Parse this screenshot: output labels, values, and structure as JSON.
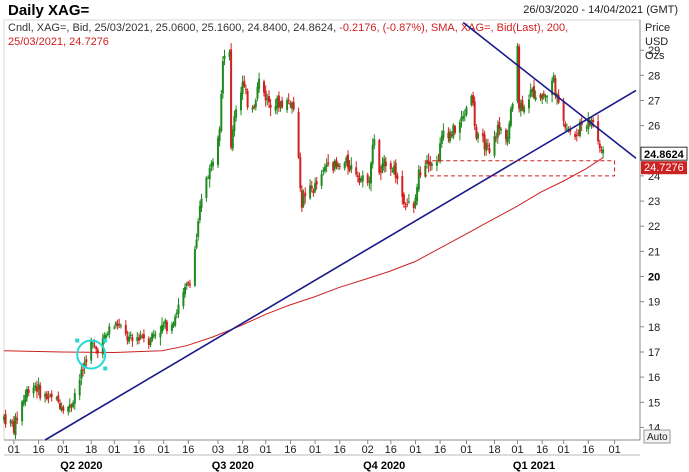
{
  "title": "Daily XAG=",
  "date_range": "26/03/2020 - 14/04/2021 (GMT)",
  "legend_line1_black": "Cndl, XAG=, Bid, 25/03/2021, 25.0600, 25.1600, 24.8400, 24.8624,",
  "legend_line1_change": " -0.2176, (-0.87%),",
  "legend_line1_sma": " SMA, XAG=, Bid(Last),  200,",
  "legend_line2": "25/03/2021, 24.7276",
  "y_axis_units": [
    "Price",
    "USD",
    "Ozs"
  ],
  "auto_label": "Auto",
  "price_box": "24.8624",
  "sma_box": "24.7276",
  "colors": {
    "up": "#1f8a1f",
    "down": "#d21f1f",
    "sma": "#cc2222",
    "trend": "#1a1a8c",
    "circle": "#25d9d9"
  },
  "chart_data": {
    "type": "candlestick",
    "instrument": "XAG=",
    "x_range": [
      "2020-03-26",
      "2021-04-14"
    ],
    "ylim": [
      13.5,
      30.2
    ],
    "y_ticks": [
      14,
      15,
      16,
      17,
      18,
      19,
      20,
      21,
      22,
      23,
      24,
      25,
      26,
      27,
      28,
      29
    ],
    "x_tick_labels": [
      {
        "label": "01",
        "date": "2020-04-01"
      },
      {
        "label": "16",
        "date": "2020-04-16"
      },
      {
        "label": "01",
        "date": "2020-05-01"
      },
      {
        "label": "18",
        "date": "2020-05-18"
      },
      {
        "label": "01",
        "date": "2020-06-01"
      },
      {
        "label": "16",
        "date": "2020-06-16"
      },
      {
        "label": "01",
        "date": "2020-07-01"
      },
      {
        "label": "16",
        "date": "2020-07-16"
      },
      {
        "label": "03",
        "date": "2020-08-03"
      },
      {
        "label": "18",
        "date": "2020-08-18"
      },
      {
        "label": "01",
        "date": "2020-09-01"
      },
      {
        "label": "16",
        "date": "2020-09-16"
      },
      {
        "label": "01",
        "date": "2020-10-01"
      },
      {
        "label": "16",
        "date": "2020-10-16"
      },
      {
        "label": "02",
        "date": "2020-11-02"
      },
      {
        "label": "16",
        "date": "2020-11-16"
      },
      {
        "label": "01",
        "date": "2020-12-01"
      },
      {
        "label": "16",
        "date": "2020-12-16"
      },
      {
        "label": "01",
        "date": "2021-01-01"
      },
      {
        "label": "18",
        "date": "2021-01-18"
      },
      {
        "label": "01",
        "date": "2021-02-01"
      },
      {
        "label": "16",
        "date": "2021-02-16"
      },
      {
        "label": "01",
        "date": "2021-03-01"
      },
      {
        "label": "16",
        "date": "2021-03-16"
      },
      {
        "label": "01",
        "date": "2021-04-01"
      }
    ],
    "quarter_labels": [
      {
        "label": "Q2 2020",
        "date": "2020-05-12"
      },
      {
        "label": "Q3 2020",
        "date": "2020-08-12"
      },
      {
        "label": "Q4 2020",
        "date": "2020-11-12"
      },
      {
        "label": "Q1 2021",
        "date": "2021-02-11"
      }
    ],
    "close_path": [
      [
        "2020-03-26",
        14.4
      ],
      [
        "2020-04-01",
        14.0
      ],
      [
        "2020-04-06",
        15.0
      ],
      [
        "2020-04-10",
        15.6
      ],
      [
        "2020-04-14",
        15.7
      ],
      [
        "2020-04-18",
        15.3
      ],
      [
        "2020-04-24",
        15.1
      ],
      [
        "2020-04-28",
        15.0
      ],
      [
        "2020-05-01",
        14.9
      ],
      [
        "2020-05-05",
        14.8
      ],
      [
        "2020-05-08",
        15.4
      ],
      [
        "2020-05-12",
        16.1
      ],
      [
        "2020-05-15",
        16.8
      ],
      [
        "2020-05-18",
        17.3
      ],
      [
        "2020-05-21",
        17.1
      ],
      [
        "2020-05-26",
        17.5
      ],
      [
        "2020-05-29",
        17.9
      ],
      [
        "2020-06-03",
        18.1
      ],
      [
        "2020-06-08",
        17.6
      ],
      [
        "2020-06-12",
        17.4
      ],
      [
        "2020-06-17",
        17.7
      ],
      [
        "2020-06-22",
        17.5
      ],
      [
        "2020-06-26",
        17.8
      ],
      [
        "2020-07-01",
        18.0
      ],
      [
        "2020-07-06",
        18.2
      ],
      [
        "2020-07-10",
        18.8
      ],
      [
        "2020-07-14",
        19.4
      ],
      [
        "2020-07-17",
        19.9
      ],
      [
        "2020-07-21",
        21.5
      ],
      [
        "2020-07-23",
        22.6
      ],
      [
        "2020-07-27",
        24.0
      ],
      [
        "2020-07-30",
        24.4
      ],
      [
        "2020-08-04",
        26.1
      ],
      [
        "2020-08-06",
        28.8
      ],
      [
        "2020-08-10",
        29.1
      ],
      [
        "2020-08-11",
        25.0
      ],
      [
        "2020-08-13",
        26.5
      ],
      [
        "2020-08-18",
        27.7
      ],
      [
        "2020-08-21",
        26.9
      ],
      [
        "2020-08-25",
        26.9
      ],
      [
        "2020-08-28",
        27.8
      ],
      [
        "2020-09-02",
        27.0
      ],
      [
        "2020-09-07",
        26.9
      ],
      [
        "2020-09-11",
        26.9
      ],
      [
        "2020-09-16",
        27.0
      ],
      [
        "2020-09-18",
        26.7
      ],
      [
        "2020-09-21",
        24.5
      ],
      [
        "2020-09-23",
        22.9
      ],
      [
        "2020-09-25",
        23.3
      ],
      [
        "2020-09-30",
        23.5
      ],
      [
        "2020-10-05",
        23.9
      ],
      [
        "2020-10-09",
        24.7
      ],
      [
        "2020-10-14",
        24.3
      ],
      [
        "2020-10-20",
        24.5
      ],
      [
        "2020-10-26",
        24.2
      ],
      [
        "2020-10-30",
        23.8
      ],
      [
        "2020-11-03",
        24.0
      ],
      [
        "2020-11-06",
        25.6
      ],
      [
        "2020-11-09",
        24.0
      ],
      [
        "2020-11-13",
        24.6
      ],
      [
        "2020-11-18",
        24.3
      ],
      [
        "2020-11-23",
        23.2
      ],
      [
        "2020-11-30",
        22.6
      ],
      [
        "2020-12-03",
        24.1
      ],
      [
        "2020-12-08",
        24.7
      ],
      [
        "2020-12-14",
        24.5
      ],
      [
        "2020-12-18",
        25.8
      ],
      [
        "2020-12-23",
        25.7
      ],
      [
        "2020-12-30",
        26.3
      ],
      [
        "2021-01-04",
        27.4
      ],
      [
        "2021-01-07",
        25.5
      ],
      [
        "2021-01-12",
        25.3
      ],
      [
        "2021-01-15",
        24.8
      ],
      [
        "2021-01-20",
        25.9
      ],
      [
        "2021-01-26",
        25.6
      ],
      [
        "2021-01-29",
        26.9
      ],
      [
        "2021-02-01",
        29.4
      ],
      [
        "2021-02-02",
        26.8
      ],
      [
        "2021-02-05",
        26.9
      ],
      [
        "2021-02-09",
        27.3
      ],
      [
        "2021-02-12",
        27.3
      ],
      [
        "2021-02-17",
        27.2
      ],
      [
        "2021-02-19",
        27.2
      ],
      [
        "2021-02-23",
        27.9
      ],
      [
        "2021-02-26",
        26.7
      ],
      [
        "2021-03-03",
        26.0
      ],
      [
        "2021-03-08",
        25.4
      ],
      [
        "2021-03-11",
        26.1
      ],
      [
        "2021-03-16",
        26.1
      ],
      [
        "2021-03-19",
        26.2
      ],
      [
        "2021-03-23",
        25.1
      ],
      [
        "2021-03-25",
        24.86
      ]
    ],
    "sma_200": [
      [
        "2020-03-26",
        17.05
      ],
      [
        "2020-04-30",
        17.0
      ],
      [
        "2020-06-01",
        16.98
      ],
      [
        "2020-06-30",
        17.05
      ],
      [
        "2020-07-15",
        17.25
      ],
      [
        "2020-07-31",
        17.6
      ],
      [
        "2020-08-17",
        18.05
      ],
      [
        "2020-09-01",
        18.5
      ],
      [
        "2020-09-15",
        18.85
      ],
      [
        "2020-10-01",
        19.2
      ],
      [
        "2020-10-15",
        19.55
      ],
      [
        "2020-11-01",
        19.9
      ],
      [
        "2020-11-15",
        20.2
      ],
      [
        "2020-12-01",
        20.6
      ],
      [
        "2020-12-15",
        21.1
      ],
      [
        "2021-01-01",
        21.7
      ],
      [
        "2021-01-15",
        22.2
      ],
      [
        "2021-02-01",
        22.8
      ],
      [
        "2021-02-15",
        23.35
      ],
      [
        "2021-03-01",
        23.8
      ],
      [
        "2021-03-15",
        24.3
      ],
      [
        "2021-03-25",
        24.73
      ]
    ],
    "trend_lines": [
      {
        "from": [
          "2020-04-20",
          13.5
        ],
        "to": [
          "2021-04-14",
          27.4
        ]
      },
      {
        "from": [
          "2020-12-30",
          30.1
        ],
        "to": [
          "2021-04-14",
          24.7
        ]
      }
    ],
    "support_zone": {
      "from": "2020-12-07",
      "to": "2021-04-01",
      "low": 24.0,
      "high": 24.6
    },
    "circle_marker": {
      "date": "2020-05-18",
      "value": 16.9
    },
    "last_close": 24.8624,
    "sma_last": 24.7276
  }
}
